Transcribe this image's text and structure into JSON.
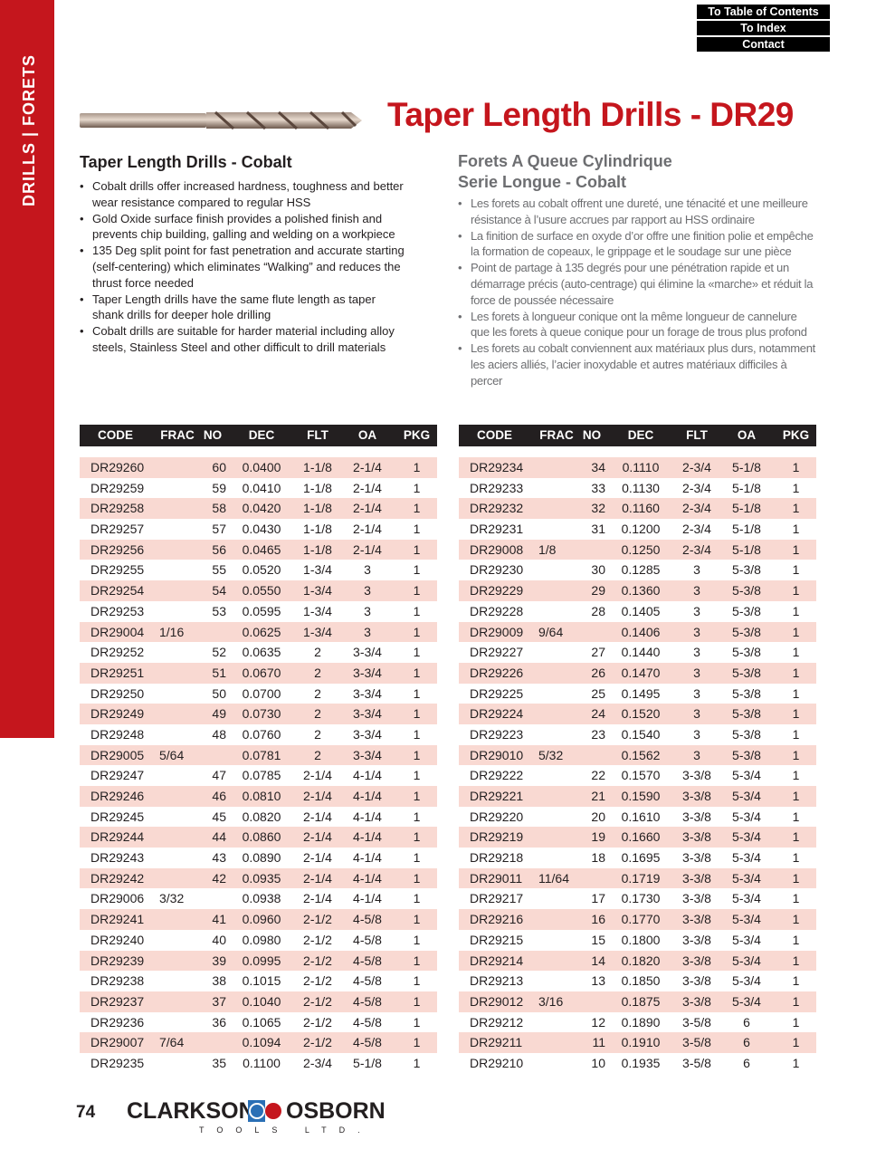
{
  "sidebar": {
    "label": "DRILLS | FORETS"
  },
  "nav": {
    "toc": "To Table of Contents",
    "index": "To Index",
    "contact": "Contact"
  },
  "title": "Taper Length Drills - DR29",
  "english": {
    "heading": "Taper Length Drills - Cobalt",
    "bullets": [
      "Cobalt drills offer increased hardness, toughness and better wear resistance compared to regular HSS",
      "Gold Oxide surface finish provides a polished finish and prevents chip building, galling and welding on a workpiece",
      "135 Deg split point for fast penetration and accurate starting (self-centering) which eliminates “Walking” and reduces the thrust force needed",
      "Taper Length drills have the same flute length as taper shank drills for deeper hole drilling",
      "Cobalt drills are suitable for harder material including alloy steels, Stainless Steel and other difficult to drill materials"
    ]
  },
  "french": {
    "heading_1": "Forets A Queue Cylindrique",
    "heading_2": "Serie Longue - Cobalt",
    "bullets": [
      "Les forets au cobalt offrent une dureté, une ténacité et une meilleure résistance à l’usure accrues par rapport au HSS ordinaire",
      "La finition de surface en oxyde d’or offre une finition polie et empêche la formation de copeaux, le grippage et le soudage sur une pièce",
      "Point de partage à 135 degrés pour une pénétration rapide et un démarrage précis (auto-centrage) qui élimine la «marche» et réduit la force de poussée nécessaire",
      "Les forets à longueur conique ont la même longueur de cannelure que les forets à queue conique pour un forage de trous plus profond",
      "Les forets au cobalt conviennent aux matériaux plus durs, notamment les aciers alliés, l’acier inoxydable et autres matériaux difficiles à percer"
    ]
  },
  "table": {
    "columns": [
      "CODE",
      "FRAC",
      "NO",
      "DEC",
      "FLT",
      "OA",
      "PKG"
    ],
    "stripe_color": "#f9d9d2",
    "left_rows": [
      [
        "DR29260",
        "",
        "60",
        "0.0400",
        "1-1/8",
        "2-1/4",
        "1"
      ],
      [
        "DR29259",
        "",
        "59",
        "0.0410",
        "1-1/8",
        "2-1/4",
        "1"
      ],
      [
        "DR29258",
        "",
        "58",
        "0.0420",
        "1-1/8",
        "2-1/4",
        "1"
      ],
      [
        "DR29257",
        "",
        "57",
        "0.0430",
        "1-1/8",
        "2-1/4",
        "1"
      ],
      [
        "DR29256",
        "",
        "56",
        "0.0465",
        "1-1/8",
        "2-1/4",
        "1"
      ],
      [
        "DR29255",
        "",
        "55",
        "0.0520",
        "1-3/4",
        "3",
        "1"
      ],
      [
        "DR29254",
        "",
        "54",
        "0.0550",
        "1-3/4",
        "3",
        "1"
      ],
      [
        "DR29253",
        "",
        "53",
        "0.0595",
        "1-3/4",
        "3",
        "1"
      ],
      [
        "DR29004",
        "1/16",
        "",
        "0.0625",
        "1-3/4",
        "3",
        "1"
      ],
      [
        "DR29252",
        "",
        "52",
        "0.0635",
        "2",
        "3-3/4",
        "1"
      ],
      [
        "DR29251",
        "",
        "51",
        "0.0670",
        "2",
        "3-3/4",
        "1"
      ],
      [
        "DR29250",
        "",
        "50",
        "0.0700",
        "2",
        "3-3/4",
        "1"
      ],
      [
        "DR29249",
        "",
        "49",
        "0.0730",
        "2",
        "3-3/4",
        "1"
      ],
      [
        "DR29248",
        "",
        "48",
        "0.0760",
        "2",
        "3-3/4",
        "1"
      ],
      [
        "DR29005",
        "5/64",
        "",
        "0.0781",
        "2",
        "3-3/4",
        "1"
      ],
      [
        "DR29247",
        "",
        "47",
        "0.0785",
        "2-1/4",
        "4-1/4",
        "1"
      ],
      [
        "DR29246",
        "",
        "46",
        "0.0810",
        "2-1/4",
        "4-1/4",
        "1"
      ],
      [
        "DR29245",
        "",
        "45",
        "0.0820",
        "2-1/4",
        "4-1/4",
        "1"
      ],
      [
        "DR29244",
        "",
        "44",
        "0.0860",
        "2-1/4",
        "4-1/4",
        "1"
      ],
      [
        "DR29243",
        "",
        "43",
        "0.0890",
        "2-1/4",
        "4-1/4",
        "1"
      ],
      [
        "DR29242",
        "",
        "42",
        "0.0935",
        "2-1/4",
        "4-1/4",
        "1"
      ],
      [
        "DR29006",
        "3/32",
        "",
        "0.0938",
        "2-1/4",
        "4-1/4",
        "1"
      ],
      [
        "DR29241",
        "",
        "41",
        "0.0960",
        "2-1/2",
        "4-5/8",
        "1"
      ],
      [
        "DR29240",
        "",
        "40",
        "0.0980",
        "2-1/2",
        "4-5/8",
        "1"
      ],
      [
        "DR29239",
        "",
        "39",
        "0.0995",
        "2-1/2",
        "4-5/8",
        "1"
      ],
      [
        "DR29238",
        "",
        "38",
        "0.1015",
        "2-1/2",
        "4-5/8",
        "1"
      ],
      [
        "DR29237",
        "",
        "37",
        "0.1040",
        "2-1/2",
        "4-5/8",
        "1"
      ],
      [
        "DR29236",
        "",
        "36",
        "0.1065",
        "2-1/2",
        "4-5/8",
        "1"
      ],
      [
        "DR29007",
        "7/64",
        "",
        "0.1094",
        "2-1/2",
        "4-5/8",
        "1"
      ],
      [
        "DR29235",
        "",
        "35",
        "0.1100",
        "2-3/4",
        "5-1/8",
        "1"
      ]
    ],
    "right_rows": [
      [
        "DR29234",
        "",
        "34",
        "0.1110",
        "2-3/4",
        "5-1/8",
        "1"
      ],
      [
        "DR29233",
        "",
        "33",
        "0.1130",
        "2-3/4",
        "5-1/8",
        "1"
      ],
      [
        "DR29232",
        "",
        "32",
        "0.1160",
        "2-3/4",
        "5-1/8",
        "1"
      ],
      [
        "DR29231",
        "",
        "31",
        "0.1200",
        "2-3/4",
        "5-1/8",
        "1"
      ],
      [
        "DR29008",
        "1/8",
        "",
        "0.1250",
        "2-3/4",
        "5-1/8",
        "1"
      ],
      [
        "DR29230",
        "",
        "30",
        "0.1285",
        "3",
        "5-3/8",
        "1"
      ],
      [
        "DR29229",
        "",
        "29",
        "0.1360",
        "3",
        "5-3/8",
        "1"
      ],
      [
        "DR29228",
        "",
        "28",
        "0.1405",
        "3",
        "5-3/8",
        "1"
      ],
      [
        "DR29009",
        "9/64",
        "",
        "0.1406",
        "3",
        "5-3/8",
        "1"
      ],
      [
        "DR29227",
        "",
        "27",
        "0.1440",
        "3",
        "5-3/8",
        "1"
      ],
      [
        "DR29226",
        "",
        "26",
        "0.1470",
        "3",
        "5-3/8",
        "1"
      ],
      [
        "DR29225",
        "",
        "25",
        "0.1495",
        "3",
        "5-3/8",
        "1"
      ],
      [
        "DR29224",
        "",
        "24",
        "0.1520",
        "3",
        "5-3/8",
        "1"
      ],
      [
        "DR29223",
        "",
        "23",
        "0.1540",
        "3",
        "5-3/8",
        "1"
      ],
      [
        "DR29010",
        "5/32",
        "",
        "0.1562",
        "3",
        "5-3/8",
        "1"
      ],
      [
        "DR29222",
        "",
        "22",
        "0.1570",
        "3-3/8",
        "5-3/4",
        "1"
      ],
      [
        "DR29221",
        "",
        "21",
        "0.1590",
        "3-3/8",
        "5-3/4",
        "1"
      ],
      [
        "DR29220",
        "",
        "20",
        "0.1610",
        "3-3/8",
        "5-3/4",
        "1"
      ],
      [
        "DR29219",
        "",
        "19",
        "0.1660",
        "3-3/8",
        "5-3/4",
        "1"
      ],
      [
        "DR29218",
        "",
        "18",
        "0.1695",
        "3-3/8",
        "5-3/4",
        "1"
      ],
      [
        "DR29011",
        "11/64",
        "",
        "0.1719",
        "3-3/8",
        "5-3/4",
        "1"
      ],
      [
        "DR29217",
        "",
        "17",
        "0.1730",
        "3-3/8",
        "5-3/4",
        "1"
      ],
      [
        "DR29216",
        "",
        "16",
        "0.1770",
        "3-3/8",
        "5-3/4",
        "1"
      ],
      [
        "DR29215",
        "",
        "15",
        "0.1800",
        "3-3/8",
        "5-3/4",
        "1"
      ],
      [
        "DR29214",
        "",
        "14",
        "0.1820",
        "3-3/8",
        "5-3/4",
        "1"
      ],
      [
        "DR29213",
        "",
        "13",
        "0.1850",
        "3-3/8",
        "5-3/4",
        "1"
      ],
      [
        "DR29012",
        "3/16",
        "",
        "0.1875",
        "3-3/8",
        "5-3/4",
        "1"
      ],
      [
        "DR29212",
        "",
        "12",
        "0.1890",
        "3-5/8",
        "6",
        "1"
      ],
      [
        "DR29211",
        "",
        "11",
        "0.1910",
        "3-5/8",
        "6",
        "1"
      ],
      [
        "DR29210",
        "",
        "10",
        "0.1935",
        "3-5/8",
        "6",
        "1"
      ]
    ]
  },
  "footer": {
    "page_number": "74",
    "logo_left": "CLARKSON",
    "logo_right": "OSBORN",
    "logo_sub": "TOOLS LTD."
  },
  "colors": {
    "brand_red": "#c5161d"
  }
}
